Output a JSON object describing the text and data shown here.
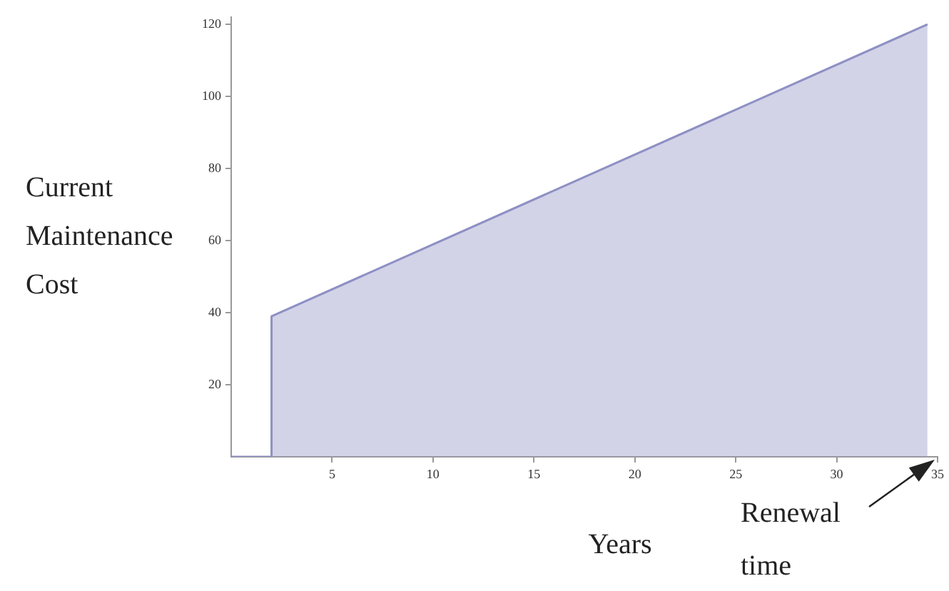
{
  "chart_data": {
    "type": "area",
    "xlabel": "Years",
    "ylabel": "Current Maintenance Cost",
    "x": [
      0,
      2,
      2,
      34.5
    ],
    "series": [
      {
        "color": "#8e90c4",
        "values": [
          0,
          0,
          39,
          120
        ]
      }
    ],
    "xlim": [
      0,
      35
    ],
    "xticks": [
      5,
      10,
      15,
      20,
      25,
      30,
      35
    ],
    "ylim": [
      0,
      122
    ],
    "yticks": [
      20,
      40,
      60,
      80,
      100,
      120
    ],
    "grid": false,
    "legend": false,
    "marker": "none",
    "line_style": "solid",
    "annotations": [
      "Renewal time"
    ]
  }
}
